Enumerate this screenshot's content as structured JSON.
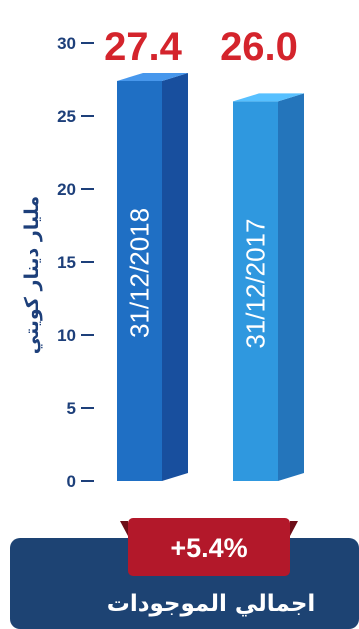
{
  "chart_data": {
    "type": "bar",
    "categories": [
      "31/12/2018",
      "31/12/2017"
    ],
    "values": [
      27.4,
      26.0
    ],
    "value_labels": [
      "27.4",
      "26.0"
    ],
    "ylabel": "مليار دينار كويتي",
    "ylim": [
      0,
      30
    ],
    "yticks": [
      0,
      5,
      10,
      15,
      20,
      25,
      30
    ],
    "grid": false,
    "legend": "none",
    "colors": {
      "bar_2018": "#1f6fc4",
      "bar_2018_side": "#184f9e",
      "bar_2017": "#2f98df",
      "bar_2017_side": "#2475bb",
      "value_label": "#d4242c",
      "axis": "#1d3f7a"
    }
  },
  "badge": {
    "text": "+5.4%",
    "color": "#b3182a"
  },
  "footer": {
    "title": "اجمالي الموجودات",
    "color": "#1d4373"
  }
}
